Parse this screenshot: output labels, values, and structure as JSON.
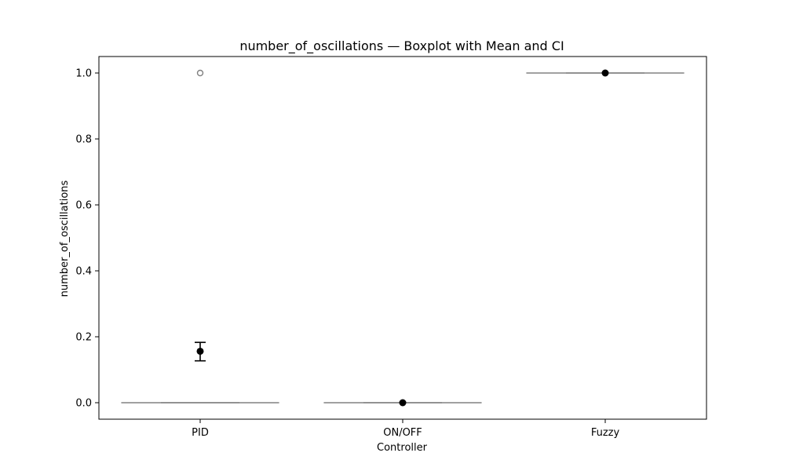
{
  "chart_data": {
    "type": "box",
    "title": "number_of_oscillations — Boxplot with Mean and CI",
    "xlabel": "Controller",
    "ylabel": "number_of_oscillations",
    "ylim": [
      -0.05,
      1.05
    ],
    "yticks": [
      0.0,
      0.2,
      0.4,
      0.6,
      0.8,
      1.0
    ],
    "ytick_labels": [
      "0.0",
      "0.2",
      "0.4",
      "0.6",
      "0.8",
      "1.0"
    ],
    "categories": [
      "PID",
      "ON/OFF",
      "Fuzzy"
    ],
    "boxes": [
      {
        "category": "PID",
        "q1": 0.0,
        "median": 0.0,
        "q3": 0.0,
        "whisker_low": 0.0,
        "whisker_high": 0.0,
        "outliers": [
          1.0
        ]
      },
      {
        "category": "ON/OFF",
        "q1": 0.0,
        "median": 0.0,
        "q3": 0.0,
        "whisker_low": 0.0,
        "whisker_high": 0.0,
        "outliers": []
      },
      {
        "category": "Fuzzy",
        "q1": 1.0,
        "median": 1.0,
        "q3": 1.0,
        "whisker_low": 1.0,
        "whisker_high": 1.0,
        "outliers": []
      }
    ],
    "means": [
      {
        "category": "PID",
        "mean": 0.156,
        "ci_low": 0.127,
        "ci_high": 0.183
      },
      {
        "category": "ON/OFF",
        "mean": 0.0,
        "ci_low": 0.0,
        "ci_high": 0.0
      },
      {
        "category": "Fuzzy",
        "mean": 1.0,
        "ci_low": 1.0,
        "ci_high": 1.0
      }
    ],
    "grid": false,
    "colors": {
      "box": "#808080",
      "mean": "#000000",
      "outlier": "#808080"
    }
  }
}
